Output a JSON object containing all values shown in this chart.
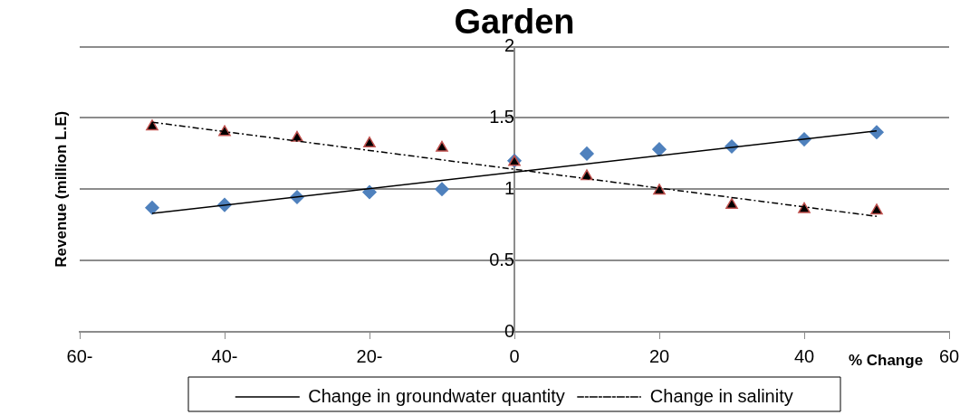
{
  "chart_data": {
    "type": "scatter",
    "title": "Garden",
    "xlabel": "% Change",
    "ylabel": "Revenue (million L.E)",
    "xlim": [
      -60,
      60
    ],
    "xticks": [
      {
        "value": -60,
        "label": "60-"
      },
      {
        "value": -40,
        "label": "40-"
      },
      {
        "value": -20,
        "label": "20-"
      },
      0,
      20,
      40,
      60
    ],
    "ylim": [
      0,
      2
    ],
    "yticks": [
      0,
      0.5,
      1,
      1.5,
      2
    ],
    "grid": "y",
    "legend": "bottom",
    "series": [
      {
        "marker": "diamond",
        "color": "#4f81bd",
        "x": [
          -50,
          -40,
          -30,
          -20,
          -10,
          0,
          10,
          20,
          30,
          40,
          50
        ],
        "values": [
          0.87,
          0.89,
          0.945,
          0.98,
          1.0,
          1.2,
          1.25,
          1.28,
          1.3,
          1.35,
          1.4
        ]
      },
      {
        "marker": "triangle",
        "color": "#000000",
        "x": [
          -50,
          -40,
          -30,
          -20,
          -10,
          0,
          10,
          20,
          30,
          40,
          50
        ],
        "values": [
          1.44,
          1.4,
          1.36,
          1.32,
          1.29,
          1.19,
          1.09,
          0.99,
          0.89,
          0.86,
          0.85
        ]
      },
      {
        "type": "line",
        "name": "Change in groundwater quantity",
        "color": "#000000",
        "line_style": "solid",
        "marker": "none",
        "x": [
          -50,
          50
        ],
        "values": [
          0.83,
          1.41
        ]
      },
      {
        "type": "line",
        "name": "Change in salinity",
        "color": "#000000",
        "line_style": "dashed",
        "marker": "none",
        "x": [
          -50,
          50
        ],
        "values": [
          1.47,
          0.81
        ]
      }
    ]
  }
}
